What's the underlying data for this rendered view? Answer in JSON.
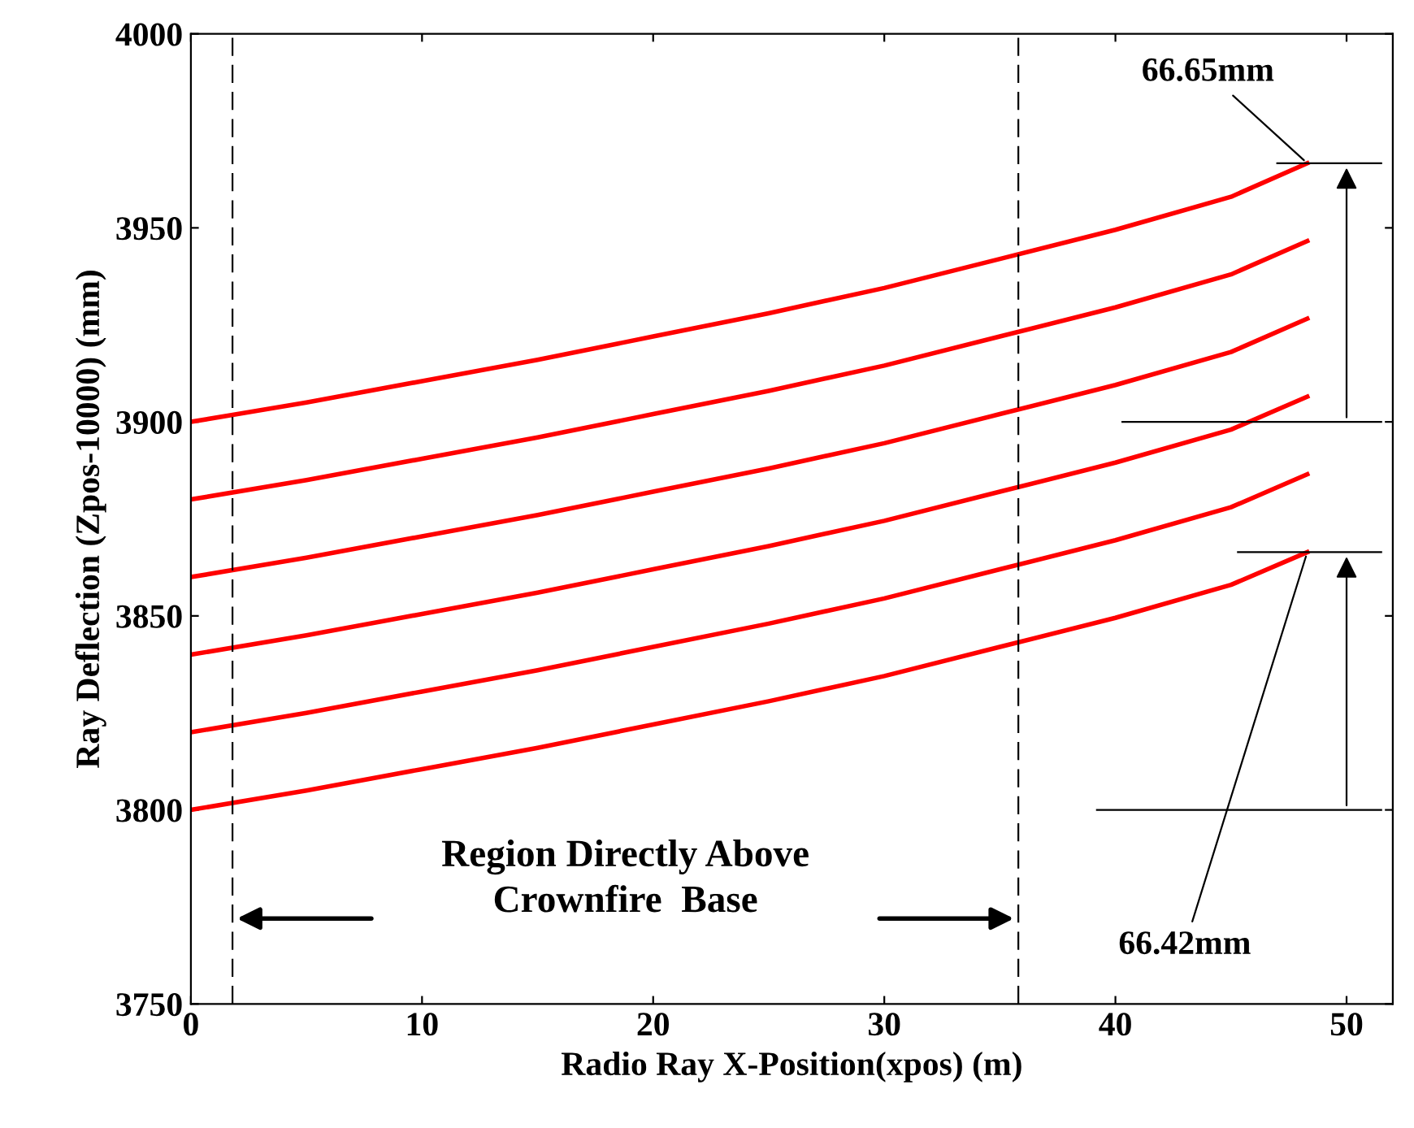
{
  "chart_data": {
    "type": "line",
    "xlabel": "Radio Ray X-Position(xpos) (m)",
    "ylabel": "Ray Deflection (Zpos-10000) (mm)",
    "x": [
      0,
      5,
      10,
      15,
      20,
      25,
      30,
      35,
      40,
      45,
      48.3
    ],
    "series": [
      {
        "color": "#ff0000",
        "values": [
          3900,
          3905,
          3910.5,
          3916,
          3922,
          3928,
          3934.5,
          3942,
          3949.5,
          3958,
          3966.65
        ]
      },
      {
        "color": "#ff0000",
        "values": [
          3880,
          3885,
          3890.5,
          3896,
          3902,
          3908,
          3914.5,
          3922,
          3929.5,
          3938,
          3946.6
        ]
      },
      {
        "color": "#ff0000",
        "values": [
          3860,
          3865,
          3870.5,
          3876,
          3882,
          3888,
          3894.5,
          3902,
          3909.5,
          3918,
          3926.6
        ]
      },
      {
        "color": "#ff0000",
        "values": [
          3840,
          3845,
          3850.5,
          3856,
          3862,
          3868,
          3874.5,
          3882,
          3889.5,
          3898,
          3906.5
        ]
      },
      {
        "color": "#ff0000",
        "values": [
          3820,
          3825,
          3830.5,
          3836,
          3842,
          3848,
          3854.5,
          3862,
          3869.5,
          3878,
          3886.5
        ]
      },
      {
        "color": "#ff0000",
        "values": [
          3800,
          3805,
          3810.5,
          3816,
          3822,
          3828,
          3834.5,
          3842,
          3849.5,
          3858,
          3866.42
        ]
      }
    ],
    "xlim": [
      0,
      52
    ],
    "ylim": [
      3750,
      4000
    ],
    "xticks": [
      0,
      10,
      20,
      30,
      40,
      50
    ],
    "yticks": [
      3750,
      3800,
      3850,
      3900,
      3950,
      4000
    ],
    "ref_lines": [
      {
        "axis": "x",
        "value": 1.8,
        "color": "#000000",
        "line_style": "dashed"
      },
      {
        "axis": "x",
        "value": 35.8,
        "color": "#000000",
        "line_style": "dashed"
      }
    ],
    "annotations": [
      {
        "text": "66.65mm",
        "x": 48.3,
        "y": 3966.65
      },
      {
        "text": "66.42mm",
        "x": 48.3,
        "y": 3866.42
      },
      "Region Directly Above\nCrownfire  Base"
    ],
    "grid": false,
    "legend": false,
    "marker": "none",
    "line_style": "solid"
  }
}
